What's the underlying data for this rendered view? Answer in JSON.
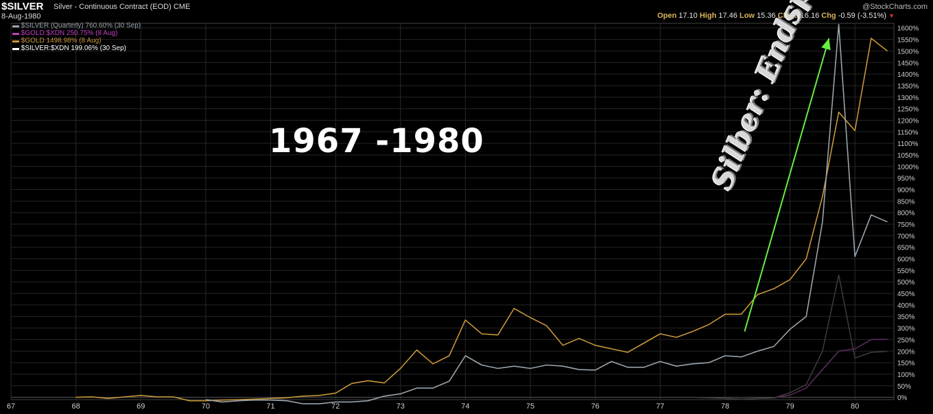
{
  "header": {
    "symbol": "$SILVER",
    "name": "Silver - Continuous Contract (EOD)",
    "exchange": "CME",
    "date": "8-Aug-1980",
    "copyright": "@StockCharts.com",
    "ohlc": {
      "open_label": "Open",
      "open": "17.10",
      "high_label": "High",
      "high": "17.46",
      "low_label": "Low",
      "low": "15.36",
      "close_label": "Close",
      "close": "16.16",
      "chg_label": "Chg",
      "chg": "-0.59 (-3.51%)"
    }
  },
  "legend": [
    {
      "text": "$SILVER (Quarterly) 760.60% (30 Sep)",
      "color": "#9aa5ad"
    },
    {
      "text": "$GOLD:$XDN 250.75% (8 Aug)",
      "color": "#c040c0"
    },
    {
      "text": "$GOLD 1498.98% (8 Aug)",
      "color": "#c8963a"
    },
    {
      "text": "$SILVER:$XDN 199.06% (30 Sep)",
      "color": "#ffffff"
    }
  ],
  "overlay_title": "1967  -1980",
  "annotation": "Silber: Endspurt !",
  "chart_data": {
    "type": "line",
    "title": "",
    "xlabel": "",
    "ylabel": "",
    "ylim": [
      -10,
      1620
    ],
    "xlim": [
      1967.0,
      1980.6
    ],
    "grid": true,
    "x_ticks": [
      "67",
      "68",
      "69",
      "70",
      "71",
      "72",
      "73",
      "74",
      "75",
      "76",
      "77",
      "78",
      "79",
      "80"
    ],
    "y_ticks": [
      "0%",
      "50%",
      "100%",
      "150%",
      "200%",
      "250%",
      "300%",
      "350%",
      "400%",
      "450%",
      "500%",
      "550%",
      "600%",
      "650%",
      "700%",
      "750%",
      "800%",
      "850%",
      "900%",
      "950%",
      "1000%",
      "1050%",
      "1100%",
      "1150%",
      "1200%",
      "1250%",
      "1300%",
      "1350%",
      "1400%",
      "1450%",
      "1500%",
      "1550%",
      "1600%"
    ],
    "series": [
      {
        "name": "$GOLD",
        "color": "#c8963a",
        "x": [
          1968.0,
          1968.25,
          1968.5,
          1968.75,
          1969.0,
          1969.25,
          1969.5,
          1969.75,
          1970.0,
          1970.25,
          1970.5,
          1970.75,
          1971.0,
          1971.25,
          1971.5,
          1971.75,
          1972.0,
          1972.25,
          1972.5,
          1972.75,
          1973.0,
          1973.25,
          1973.5,
          1973.75,
          1974.0,
          1974.25,
          1974.5,
          1974.75,
          1975.0,
          1975.25,
          1975.5,
          1975.75,
          1976.0,
          1976.25,
          1976.5,
          1976.75,
          1977.0,
          1977.25,
          1977.5,
          1977.75,
          1978.0,
          1978.25,
          1978.5,
          1978.75,
          1979.0,
          1979.25,
          1979.5,
          1979.75,
          1980.0,
          1980.25,
          1980.5
        ],
        "y": [
          0,
          2,
          -5,
          2,
          8,
          2,
          2,
          -15,
          -15,
          -12,
          -10,
          -8,
          -5,
          -2,
          5,
          8,
          18,
          60,
          72,
          62,
          125,
          205,
          145,
          180,
          335,
          275,
          270,
          385,
          345,
          310,
          225,
          255,
          225,
          210,
          195,
          235,
          275,
          260,
          285,
          315,
          360,
          360,
          445,
          470,
          510,
          600,
          870,
          1235,
          1155,
          1555,
          1500
        ]
      },
      {
        "name": "$SILVER (Quarterly)",
        "color": "#9aa5ad",
        "x": [
          1970.0,
          1970.25,
          1970.5,
          1970.75,
          1971.0,
          1971.25,
          1971.5,
          1971.75,
          1972.0,
          1972.25,
          1972.5,
          1972.75,
          1973.0,
          1973.25,
          1973.5,
          1973.75,
          1974.0,
          1974.25,
          1974.5,
          1974.75,
          1975.0,
          1975.25,
          1975.5,
          1975.75,
          1976.0,
          1976.25,
          1976.5,
          1976.75,
          1977.0,
          1977.25,
          1977.5,
          1977.75,
          1978.0,
          1978.25,
          1978.5,
          1978.75,
          1979.0,
          1979.25,
          1979.5,
          1979.75,
          1980.0,
          1980.25,
          1980.5
        ],
        "y": [
          -10,
          -20,
          -15,
          -12,
          -12,
          -15,
          -28,
          -28,
          -20,
          -20,
          -15,
          5,
          15,
          40,
          40,
          70,
          180,
          140,
          125,
          135,
          125,
          140,
          135,
          120,
          118,
          155,
          130,
          130,
          155,
          135,
          145,
          150,
          180,
          175,
          200,
          220,
          295,
          350,
          760,
          1615,
          610,
          790,
          760
        ]
      },
      {
        "name": "$GOLD:$XDN",
        "color": "#5a2a5a",
        "x": [
          1977.5,
          1977.75,
          1978.0,
          1978.25,
          1978.5,
          1978.75,
          1979.0,
          1979.25,
          1979.5,
          1979.75,
          1980.0,
          1980.25,
          1980.5
        ],
        "y": [
          0,
          -2,
          -5,
          -8,
          -5,
          -3,
          10,
          40,
          120,
          200,
          210,
          250,
          251
        ]
      },
      {
        "name": "$SILVER:$XDN",
        "color": "#3a3a3a",
        "x": [
          1977.5,
          1977.75,
          1978.0,
          1978.25,
          1978.5,
          1978.75,
          1979.0,
          1979.25,
          1979.5,
          1979.75,
          1980.0,
          1980.25,
          1980.5
        ],
        "y": [
          0,
          -2,
          -5,
          -8,
          -5,
          -3,
          20,
          55,
          200,
          530,
          170,
          195,
          199
        ]
      }
    ],
    "annotation_arrow": {
      "x1": 1978.3,
      "y1": 285,
      "x2": 1979.6,
      "y2": 1555,
      "color": "#66ee44"
    }
  }
}
